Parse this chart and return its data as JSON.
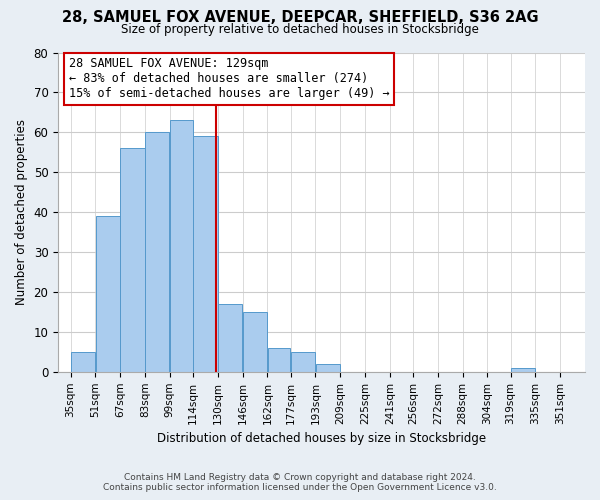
{
  "title": "28, SAMUEL FOX AVENUE, DEEPCAR, SHEFFIELD, S36 2AG",
  "subtitle": "Size of property relative to detached houses in Stocksbridge",
  "xlabel": "Distribution of detached houses by size in Stocksbridge",
  "ylabel": "Number of detached properties",
  "bar_left_edges": [
    35,
    51,
    67,
    83,
    99,
    114,
    130,
    146,
    162,
    177,
    193,
    209,
    225,
    241,
    256,
    272,
    288,
    304,
    319,
    335
  ],
  "bar_heights": [
    5,
    39,
    56,
    60,
    63,
    59,
    17,
    15,
    6,
    5,
    2,
    0,
    0,
    0,
    0,
    0,
    0,
    0,
    1,
    0
  ],
  "bar_widths": [
    16,
    16,
    16,
    16,
    15,
    16,
    16,
    16,
    15,
    16,
    16,
    16,
    15,
    16,
    16,
    16,
    16,
    15,
    16,
    16
  ],
  "tick_labels": [
    "35sqm",
    "51sqm",
    "67sqm",
    "83sqm",
    "99sqm",
    "114sqm",
    "130sqm",
    "146sqm",
    "162sqm",
    "177sqm",
    "193sqm",
    "209sqm",
    "225sqm",
    "241sqm",
    "256sqm",
    "272sqm",
    "288sqm",
    "304sqm",
    "319sqm",
    "335sqm",
    "351sqm"
  ],
  "tick_positions": [
    35,
    51,
    67,
    83,
    99,
    114,
    130,
    146,
    162,
    177,
    193,
    209,
    225,
    241,
    256,
    272,
    288,
    304,
    319,
    335,
    351
  ],
  "vline_x": 129,
  "vline_color": "#cc0000",
  "bar_color": "#aaccee",
  "bar_edge_color": "#5599cc",
  "ylim": [
    0,
    80
  ],
  "xlim_left": 27,
  "xlim_right": 367,
  "annotation_title": "28 SAMUEL FOX AVENUE: 129sqm",
  "annotation_line1": "← 83% of detached houses are smaller (274)",
  "annotation_line2": "15% of semi-detached houses are larger (49) →",
  "footer_line1": "Contains HM Land Registry data © Crown copyright and database right 2024.",
  "footer_line2": "Contains public sector information licensed under the Open Government Licence v3.0.",
  "bg_color": "#e8eef4",
  "plot_bg_color": "#ffffff",
  "grid_color": "#cccccc",
  "title_fontsize": 10.5,
  "subtitle_fontsize": 8.5,
  "ylabel_fontsize": 8.5,
  "xlabel_fontsize": 8.5,
  "tick_fontsize": 7.5,
  "ytick_fontsize": 8.5,
  "footer_fontsize": 6.5,
  "ann_fontsize": 8.5
}
